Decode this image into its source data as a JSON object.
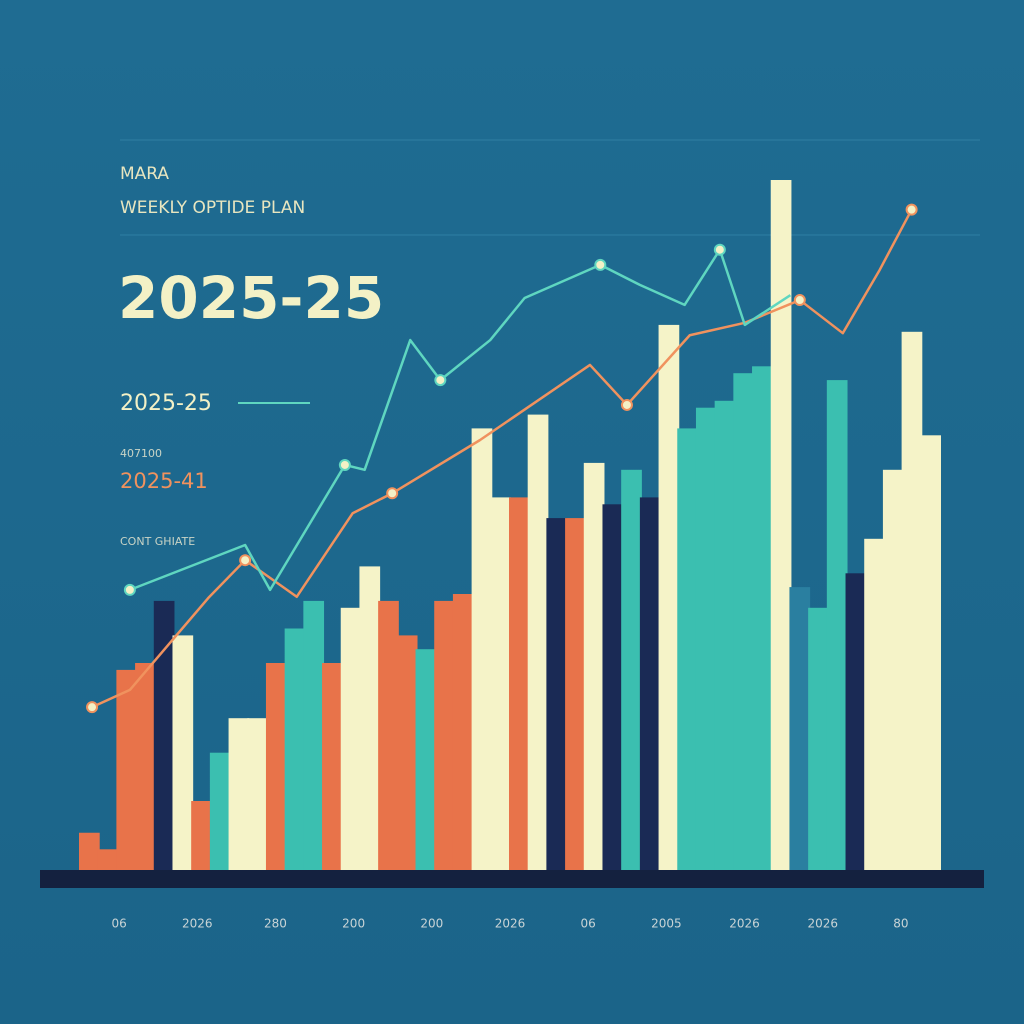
{
  "chart_data": {
    "type": "bar",
    "brand": "MARA",
    "title": "WEEKLY OPTIDE PLAN",
    "headline": "2025-25",
    "subheads": [
      "2025-25",
      "407100",
      "2025-41",
      "CONT GHIATE"
    ],
    "ylim": [
      0,
      100
    ],
    "xlim": [
      0,
      100
    ],
    "x_labels": [
      "06",
      "2026",
      "280",
      "200",
      "200",
      "2026",
      "06",
      "2005",
      "2026",
      "2026",
      "80"
    ],
    "values": [
      5.4,
      3,
      29,
      30,
      39,
      34,
      10,
      17,
      22,
      22,
      30,
      35,
      39,
      30,
      38,
      44,
      39,
      34,
      32,
      39,
      40,
      64,
      54,
      54,
      66,
      51,
      51,
      59,
      53,
      58,
      54,
      79,
      64,
      67,
      68,
      72,
      73,
      100,
      41,
      38,
      71,
      43,
      48,
      58,
      78,
      63
    ],
    "colors": [
      "#e8734a",
      "#e8734a",
      "#e8734a",
      "#e8734a",
      "#1a2a55",
      "#f5f3c8",
      "#e8734a",
      "#3bbfb0",
      "#f5f3c8",
      "#f5f3c8",
      "#e8734a",
      "#3bbfb0",
      "#3bbfb0",
      "#e8734a",
      "#f5f3c8",
      "#f5f3c8",
      "#e8734a",
      "#e8734a",
      "#3bbfb0",
      "#e8734a",
      "#e8734a",
      "#f5f3c8",
      "#f5f3c8",
      "#e8734a",
      "#f5f3c8",
      "#1a2a55",
      "#e8734a",
      "#f5f3c8",
      "#1a2a55",
      "#3bbfb0",
      "#1a2a55",
      "#f5f3c8",
      "#3bbfb0",
      "#3bbfb0",
      "#3bbfb0",
      "#3bbfb0",
      "#3bbfb0",
      "#f5f3c8",
      "#2a7fa0",
      "#3bbfb0",
      "#3bbfb0",
      "#1a2a55",
      "#f5f3c8",
      "#f5f3c8",
      "#f5f3c8",
      "#f5f3c8"
    ],
    "lines": [
      {
        "color": "#f0925e",
        "x": [
          1.4,
          5.8,
          14.9,
          19.2,
          25.2,
          31.7,
          36.3,
          46.5,
          59.3,
          63.6,
          70.9,
          77.3,
          83.7,
          88.7,
          93,
          96.7
        ],
        "values": [
          23.6,
          26.1,
          39.4,
          44.9,
          39.6,
          51.7,
          54.6,
          62.3,
          73.2,
          67.4,
          77.5,
          79.3,
          82.6,
          77.8,
          87,
          95.7
        ]
      },
      {
        "color": "#5fd6c0",
        "x": [
          5.8,
          19.2,
          22.1,
          30.8,
          33.1,
          38.4,
          41.9,
          47.7,
          51.7,
          60.5,
          65.1,
          70.3,
          74.4,
          77.3,
          82.6
        ],
        "values": [
          40.6,
          47.1,
          40.6,
          58.7,
          58,
          76.8,
          71,
          76.8,
          82.9,
          87.7,
          84.8,
          81.9,
          89.9,
          79,
          83.3
        ]
      }
    ]
  }
}
